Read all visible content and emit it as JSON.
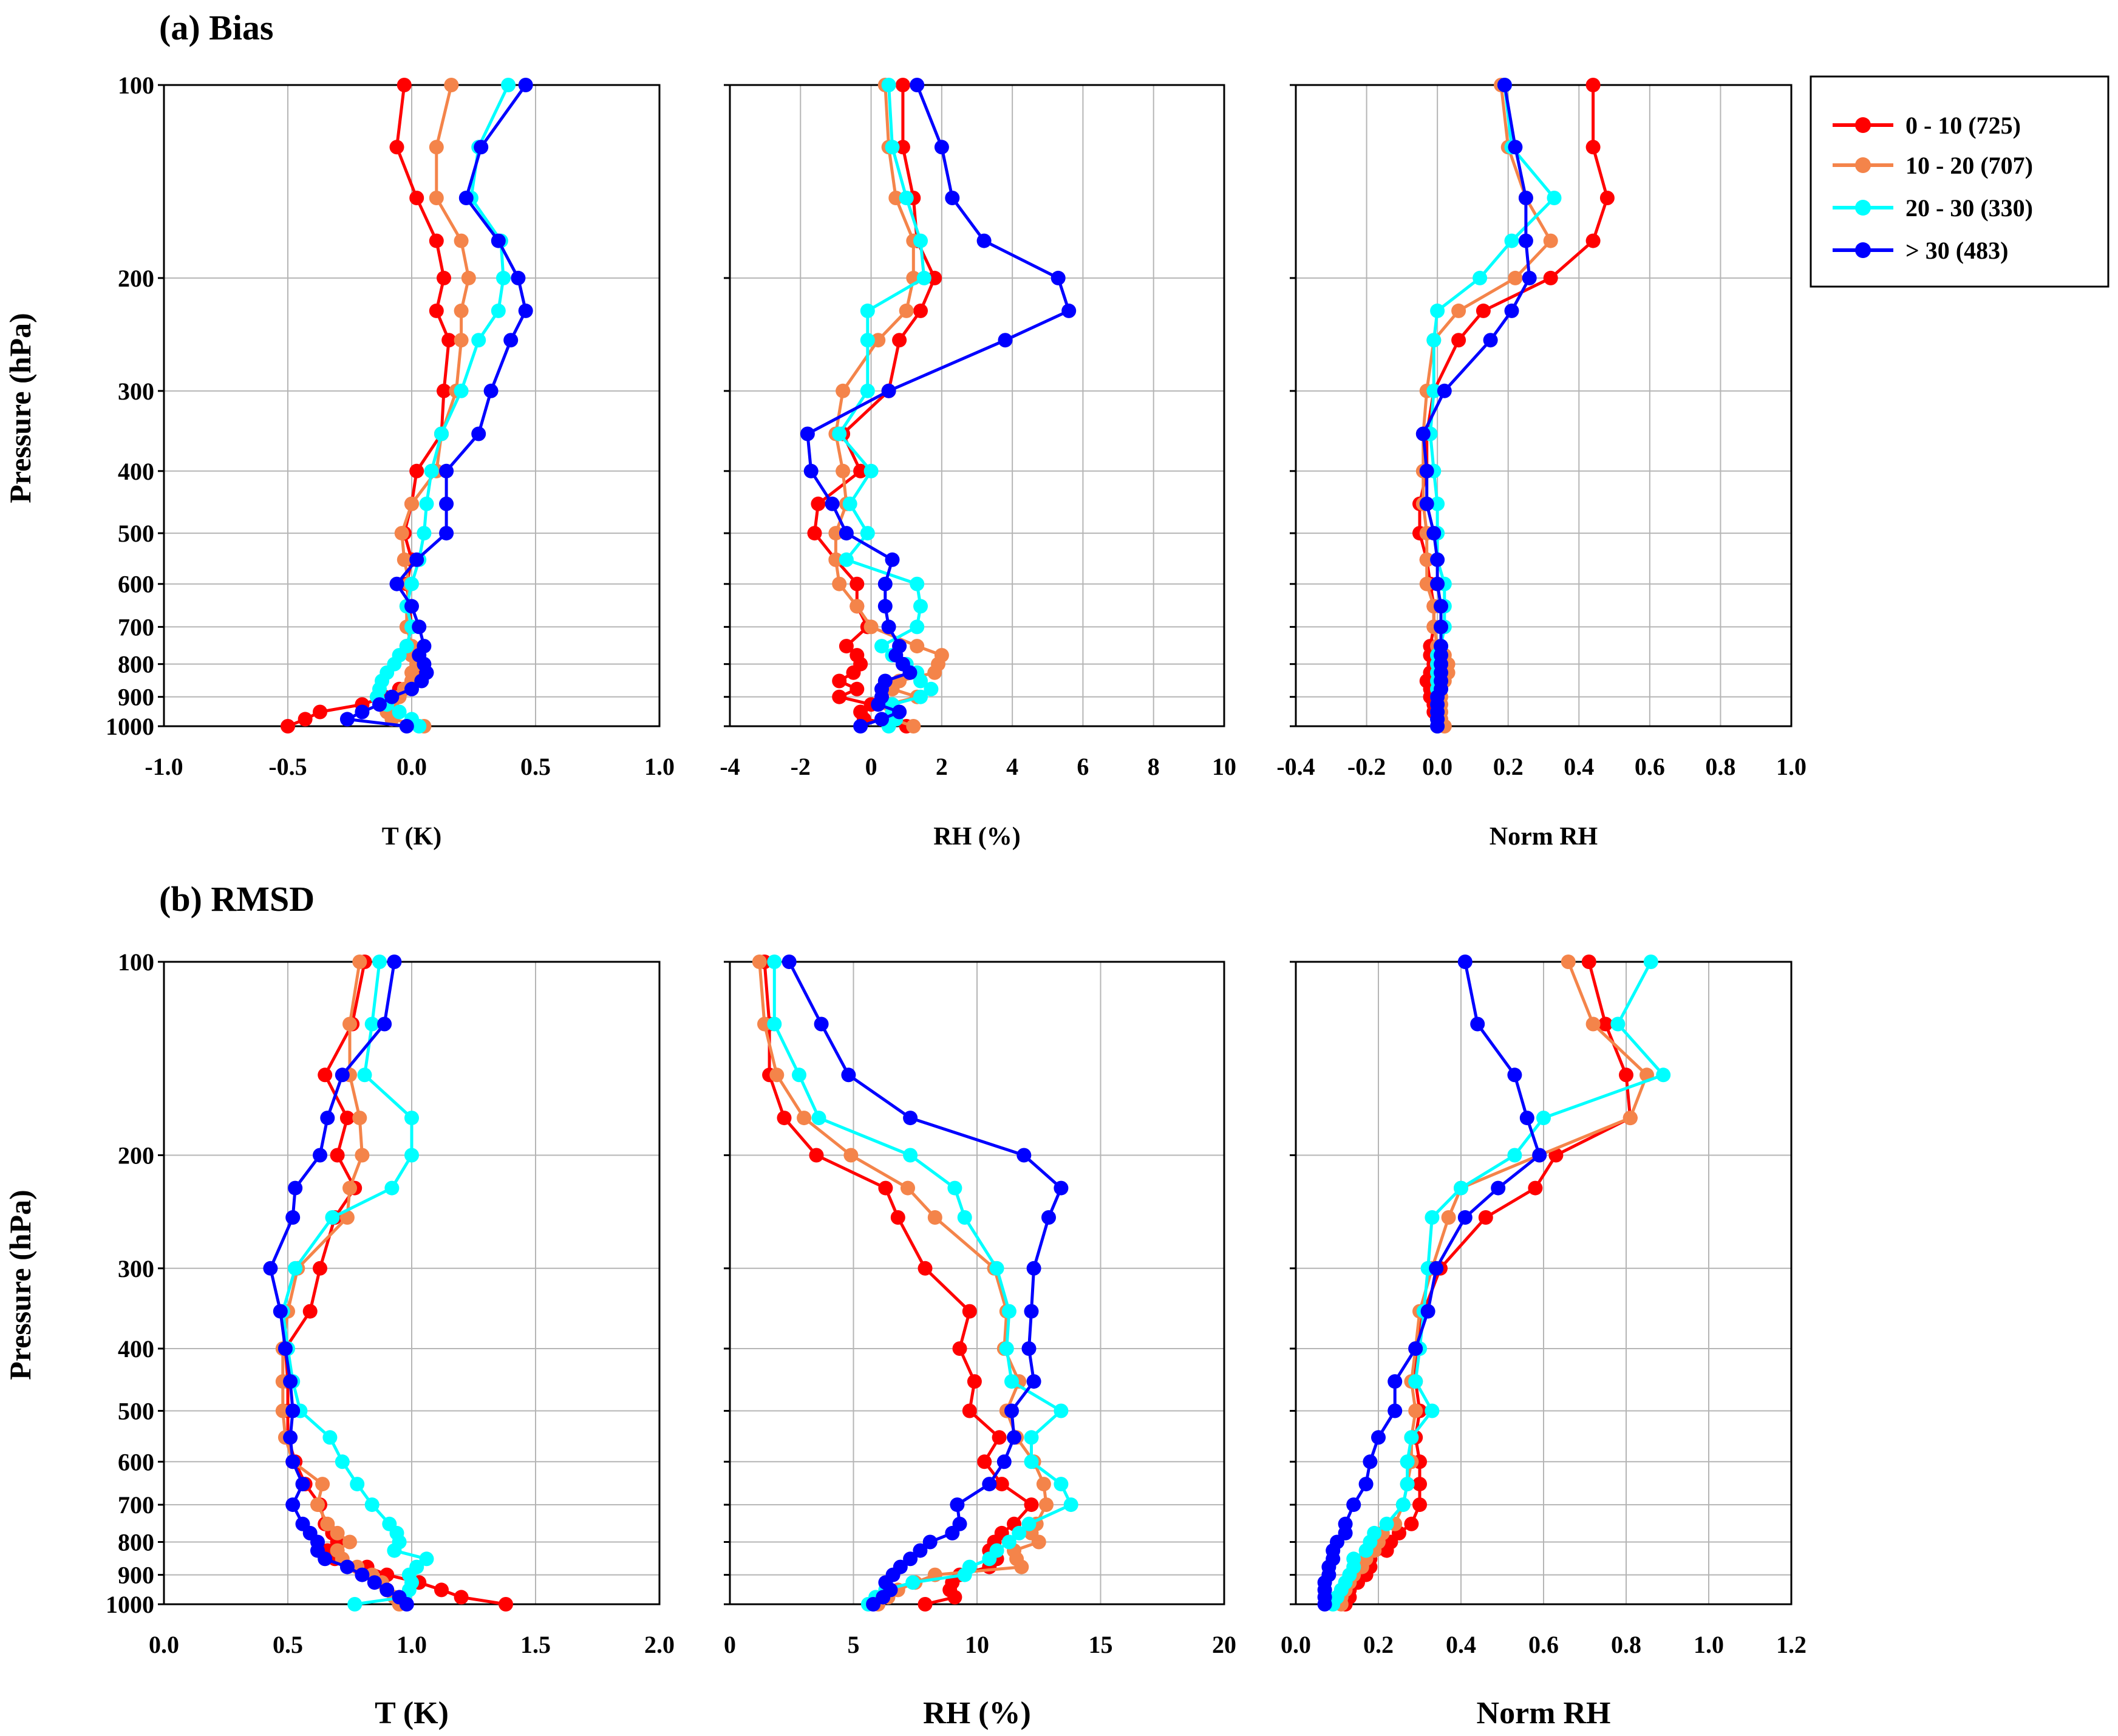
{
  "panel_titles": [
    "(a) Bias",
    "(b) RMSD"
  ],
  "y_axis_label": "Pressure (hPa)",
  "legend": [
    {
      "label": "0 - 10 (725)",
      "color": "#ff0000"
    },
    {
      "label": "10 - 20 (707)",
      "color": "#f4844a"
    },
    {
      "label": "20 - 30 (330)",
      "color": "#00ffff"
    },
    {
      "label": "> 30 (483)",
      "color": "#0000ff"
    }
  ],
  "chart_data": [
    {
      "type": "line",
      "panel": "(a) Bias",
      "xlabel": "T (K)",
      "ylabel": "Pressure (hPa)",
      "xlim": [
        -1.0,
        1.0
      ],
      "xticks": [
        "-1.0",
        "-0.5",
        "0.0",
        "0.5",
        "1.0"
      ],
      "ylim": [
        100,
        1000
      ],
      "yticks": [
        "100",
        "200",
        "300",
        "400",
        "500",
        "600",
        "700",
        "800",
        "900",
        "1000"
      ],
      "y": [
        100,
        125,
        150,
        175,
        200,
        225,
        250,
        300,
        350,
        400,
        450,
        500,
        550,
        600,
        650,
        700,
        750,
        775,
        800,
        825,
        850,
        875,
        900,
        925,
        950,
        975,
        1000
      ],
      "series": [
        {
          "name": "0 - 10 (725)",
          "values": [
            -0.03,
            -0.06,
            0.02,
            0.1,
            0.13,
            0.1,
            0.15,
            0.13,
            0.12,
            0.02,
            0.0,
            -0.03,
            0.0,
            -0.02,
            -0.01,
            0.0,
            -0.02,
            0.0,
            0.02,
            0.02,
            0.0,
            -0.05,
            -0.11,
            -0.2,
            -0.37,
            -0.43,
            -0.5
          ]
        },
        {
          "name": "10 - 20 (707)",
          "values": [
            0.16,
            0.1,
            0.1,
            0.2,
            0.23,
            0.2,
            0.2,
            0.18,
            0.12,
            0.1,
            0.0,
            -0.04,
            -0.03,
            -0.01,
            -0.02,
            -0.02,
            0.0,
            0.0,
            0.02,
            0.0,
            0.0,
            -0.03,
            -0.05,
            -0.08,
            -0.1,
            -0.08,
            0.05
          ]
        },
        {
          "name": "20 - 30 (330)",
          "values": [
            0.39,
            0.27,
            0.24,
            0.36,
            0.37,
            0.35,
            0.27,
            0.2,
            0.12,
            0.08,
            0.06,
            0.05,
            0.03,
            0.0,
            -0.02,
            0.0,
            -0.02,
            -0.05,
            -0.07,
            -0.1,
            -0.12,
            -0.13,
            -0.14,
            -0.1,
            -0.05,
            0.0,
            0.03
          ]
        },
        {
          "name": "> 30 (483)",
          "values": [
            0.46,
            0.28,
            0.22,
            0.35,
            0.43,
            0.46,
            0.4,
            0.32,
            0.27,
            0.14,
            0.14,
            0.14,
            0.02,
            -0.06,
            0.0,
            0.03,
            0.05,
            0.03,
            0.05,
            0.06,
            0.04,
            0.0,
            -0.08,
            -0.13,
            -0.2,
            -0.26,
            -0.02
          ]
        }
      ]
    },
    {
      "type": "line",
      "panel": "(a) Bias",
      "xlabel": "RH (%)",
      "ylabel": "Pressure (hPa)",
      "xlim": [
        -4,
        10
      ],
      "xticks": [
        "-4",
        "-2",
        "0",
        "2",
        "4",
        "6",
        "8",
        "10"
      ],
      "ylim": [
        100,
        1000
      ],
      "yticks": [
        "100",
        "200",
        "300",
        "400",
        "500",
        "600",
        "700",
        "800",
        "900",
        "1000"
      ],
      "y": [
        100,
        125,
        150,
        175,
        200,
        225,
        250,
        300,
        350,
        400,
        450,
        500,
        550,
        600,
        650,
        700,
        750,
        775,
        800,
        825,
        850,
        875,
        900,
        925,
        950,
        975,
        1000
      ],
      "series": [
        {
          "name": "0 - 10 (725)",
          "values": [
            0.9,
            0.9,
            1.2,
            1.3,
            1.8,
            1.4,
            0.8,
            0.5,
            -0.8,
            -0.3,
            -1.5,
            -1.6,
            -1.0,
            -0.4,
            -0.4,
            -0.1,
            -0.7,
            -0.4,
            -0.3,
            -0.5,
            -0.9,
            -0.4,
            -0.9,
            0.0,
            -0.3,
            -0.2,
            1.0
          ]
        },
        {
          "name": "10 - 20 (707)",
          "values": [
            0.4,
            0.5,
            0.7,
            1.2,
            1.2,
            1.0,
            0.2,
            -0.8,
            -1.0,
            -0.8,
            -0.7,
            -1.0,
            -1.0,
            -0.9,
            -0.4,
            0.0,
            1.3,
            2.0,
            1.9,
            1.8,
            0.8,
            0.6,
            1.3,
            0.5,
            0.7,
            0.6,
            1.2
          ]
        },
        {
          "name": "20 - 30 (330)",
          "values": [
            0.5,
            0.6,
            1.0,
            1.4,
            1.5,
            -0.1,
            -0.1,
            -0.1,
            -0.9,
            0.0,
            -0.6,
            -0.1,
            -0.7,
            1.3,
            1.4,
            1.3,
            0.3,
            0.6,
            1.0,
            1.3,
            1.4,
            1.7,
            1.4,
            0.6,
            0.6,
            0.7,
            0.5
          ]
        },
        {
          "name": "> 30 (483)",
          "values": [
            1.3,
            2.0,
            2.3,
            3.2,
            5.3,
            5.6,
            3.8,
            0.5,
            -1.8,
            -1.7,
            -1.1,
            -0.7,
            0.6,
            0.4,
            0.4,
            0.5,
            0.8,
            0.7,
            0.9,
            1.1,
            0.4,
            0.3,
            0.3,
            0.2,
            0.8,
            0.3,
            -0.3
          ]
        }
      ]
    },
    {
      "type": "line",
      "panel": "(a) Bias",
      "xlabel": "Norm RH",
      "ylabel": "Pressure (hPa)",
      "xlim": [
        -0.4,
        1.0
      ],
      "xticks": [
        "-0.4",
        "-0.2",
        "0.0",
        "0.2",
        "0.4",
        "0.6",
        "0.8",
        "1.0"
      ],
      "ylim": [
        100,
        1000
      ],
      "yticks": [
        "100",
        "200",
        "300",
        "400",
        "500",
        "600",
        "700",
        "800",
        "900",
        "1000"
      ],
      "y": [
        100,
        125,
        150,
        175,
        200,
        225,
        250,
        300,
        350,
        400,
        450,
        500,
        550,
        600,
        650,
        700,
        750,
        775,
        800,
        825,
        850,
        875,
        900,
        925,
        950,
        975,
        1000
      ],
      "series": [
        {
          "name": "0 - 10 (725)",
          "values": [
            0.44,
            0.44,
            0.48,
            0.44,
            0.32,
            0.13,
            0.06,
            -0.01,
            -0.03,
            -0.03,
            -0.05,
            -0.05,
            -0.03,
            -0.02,
            -0.01,
            -0.01,
            -0.02,
            -0.02,
            -0.01,
            -0.02,
            -0.03,
            -0.02,
            -0.02,
            -0.01,
            -0.01,
            0.0,
            0.0
          ]
        },
        {
          "name": "10 - 20 (707)",
          "values": [
            0.18,
            0.2,
            0.25,
            0.32,
            0.22,
            0.06,
            -0.01,
            -0.03,
            -0.04,
            -0.04,
            -0.04,
            -0.03,
            -0.03,
            -0.03,
            -0.01,
            -0.01,
            0.0,
            0.02,
            0.03,
            0.03,
            0.02,
            0.01,
            0.01,
            0.01,
            0.01,
            0.01,
            0.02
          ]
        },
        {
          "name": "20 - 30 (330)",
          "values": [
            0.19,
            0.21,
            0.33,
            0.21,
            0.12,
            0.0,
            -0.01,
            -0.01,
            -0.02,
            -0.01,
            0.0,
            0.0,
            0.0,
            0.02,
            0.02,
            0.02,
            0.01,
            0.0,
            0.0,
            0.0,
            0.0,
            0.0,
            0.0,
            0.0,
            0.0,
            0.0,
            0.0
          ]
        },
        {
          "name": "> 30 (483)",
          "values": [
            0.19,
            0.22,
            0.25,
            0.25,
            0.26,
            0.21,
            0.15,
            0.02,
            -0.04,
            -0.03,
            -0.03,
            -0.01,
            0.0,
            0.0,
            0.01,
            0.01,
            0.01,
            0.01,
            0.01,
            0.01,
            0.01,
            0.01,
            0.0,
            0.0,
            0.0,
            0.0,
            0.0
          ]
        }
      ]
    },
    {
      "type": "line",
      "panel": "(b) RMSD",
      "xlabel": "T (K)",
      "ylabel": "Pressure (hPa)",
      "xlim": [
        0.0,
        2.0
      ],
      "xticks": [
        "0.0",
        "0.5",
        "1.0",
        "1.5",
        "2.0"
      ],
      "ylim": [
        100,
        1000
      ],
      "yticks": [
        "100",
        "200",
        "300",
        "400",
        "500",
        "600",
        "700",
        "800",
        "900",
        "1000"
      ],
      "y": [
        100,
        125,
        150,
        175,
        200,
        225,
        250,
        300,
        350,
        400,
        450,
        500,
        550,
        600,
        650,
        700,
        750,
        775,
        800,
        825,
        850,
        875,
        900,
        925,
        950,
        975,
        1000
      ],
      "series": [
        {
          "name": "0 - 10 (725)",
          "values": [
            0.81,
            0.76,
            0.65,
            0.74,
            0.7,
            0.77,
            0.69,
            0.63,
            0.59,
            0.49,
            0.5,
            0.5,
            0.5,
            0.53,
            0.57,
            0.63,
            0.65,
            0.68,
            0.7,
            0.66,
            0.69,
            0.82,
            0.9,
            1.03,
            1.12,
            1.2,
            1.38
          ]
        },
        {
          "name": "10 - 20 (707)",
          "values": [
            0.79,
            0.75,
            0.75,
            0.79,
            0.8,
            0.75,
            0.74,
            0.54,
            0.5,
            0.48,
            0.48,
            0.48,
            0.49,
            0.52,
            0.64,
            0.62,
            0.66,
            0.7,
            0.75,
            0.7,
            0.72,
            0.78,
            0.84,
            0.88,
            0.9,
            0.93,
            0.95
          ]
        },
        {
          "name": "20 - 30 (330)",
          "values": [
            0.87,
            0.84,
            0.81,
            1.0,
            1.0,
            0.92,
            0.68,
            0.53,
            0.48,
            0.5,
            0.52,
            0.55,
            0.67,
            0.72,
            0.78,
            0.84,
            0.91,
            0.94,
            0.95,
            0.93,
            1.06,
            1.02,
            0.99,
            1.0,
            0.99,
            0.97,
            0.77
          ]
        },
        {
          "name": "> 30 (483)",
          "values": [
            0.93,
            0.89,
            0.72,
            0.66,
            0.63,
            0.53,
            0.52,
            0.43,
            0.47,
            0.49,
            0.51,
            0.52,
            0.51,
            0.52,
            0.56,
            0.52,
            0.56,
            0.59,
            0.62,
            0.62,
            0.65,
            0.74,
            0.8,
            0.85,
            0.9,
            0.95,
            0.98
          ]
        }
      ]
    },
    {
      "type": "line",
      "panel": "(b) RMSD",
      "xlabel": "RH (%)",
      "ylabel": "Pressure (hPa)",
      "xlim": [
        0,
        20
      ],
      "xticks": [
        "0",
        "5",
        "10",
        "15",
        "20"
      ],
      "ylim": [
        100,
        1000
      ],
      "yticks": [
        "100",
        "200",
        "300",
        "400",
        "500",
        "600",
        "700",
        "800",
        "900",
        "1000"
      ],
      "y": [
        100,
        125,
        150,
        175,
        200,
        225,
        250,
        300,
        350,
        400,
        450,
        500,
        550,
        600,
        650,
        700,
        750,
        775,
        800,
        825,
        850,
        875,
        900,
        925,
        950,
        975,
        1000
      ],
      "series": [
        {
          "name": "0 - 10 (725)",
          "values": [
            1.4,
            1.6,
            1.6,
            2.2,
            3.5,
            6.3,
            6.8,
            7.9,
            9.7,
            9.3,
            9.9,
            9.7,
            10.9,
            10.3,
            11.0,
            12.2,
            11.5,
            11.0,
            10.7,
            10.5,
            10.8,
            10.5,
            9.3,
            9.0,
            8.9,
            9.1,
            7.9
          ]
        },
        {
          "name": "10 - 20 (707)",
          "values": [
            1.2,
            1.4,
            1.9,
            3.0,
            4.9,
            7.2,
            8.3,
            10.7,
            11.2,
            11.1,
            11.7,
            11.2,
            11.6,
            12.3,
            12.7,
            12.8,
            12.4,
            12.2,
            12.5,
            11.5,
            11.6,
            11.8,
            8.3,
            7.5,
            6.8,
            6.4,
            6.0
          ]
        },
        {
          "name": "20 - 30 (330)",
          "values": [
            1.8,
            1.8,
            2.8,
            3.6,
            7.3,
            9.1,
            9.5,
            10.8,
            11.3,
            11.2,
            11.4,
            13.4,
            12.2,
            12.2,
            13.4,
            13.8,
            12.1,
            11.7,
            11.3,
            10.8,
            10.5,
            9.7,
            9.5,
            7.4,
            6.3,
            5.9,
            5.6
          ]
        },
        {
          "name": "> 30 (483)",
          "values": [
            2.4,
            3.7,
            4.8,
            7.3,
            11.9,
            13.4,
            12.9,
            12.3,
            12.2,
            12.1,
            12.3,
            11.4,
            11.5,
            11.1,
            10.5,
            9.2,
            9.3,
            9.0,
            8.1,
            7.7,
            7.3,
            6.9,
            6.6,
            6.3,
            6.5,
            6.2,
            5.8
          ]
        }
      ]
    },
    {
      "type": "line",
      "panel": "(b) RMSD",
      "xlabel": "Norm RH",
      "ylabel": "Pressure (hPa)",
      "xlim": [
        0.0,
        1.2
      ],
      "xticks": [
        "0.0",
        "0.2",
        "0.4",
        "0.6",
        "0.8",
        "1.0",
        "1.2"
      ],
      "ylim": [
        100,
        1000
      ],
      "yticks": [
        "100",
        "200",
        "300",
        "400",
        "500",
        "600",
        "700",
        "800",
        "900",
        "1000"
      ],
      "y": [
        100,
        125,
        150,
        175,
        200,
        225,
        250,
        300,
        350,
        400,
        450,
        500,
        550,
        600,
        650,
        700,
        750,
        775,
        800,
        825,
        850,
        875,
        900,
        925,
        950,
        975,
        1000
      ],
      "series": [
        {
          "name": "0 - 10 (725)",
          "values": [
            0.71,
            0.75,
            0.8,
            0.81,
            0.63,
            0.58,
            0.46,
            0.35,
            0.31,
            0.29,
            0.29,
            0.3,
            0.29,
            0.3,
            0.3,
            0.3,
            0.28,
            0.25,
            0.23,
            0.22,
            0.18,
            0.18,
            0.17,
            0.15,
            0.13,
            0.13,
            0.12
          ]
        },
        {
          "name": "10 - 20 (707)",
          "values": [
            0.66,
            0.72,
            0.85,
            0.81,
            0.59,
            0.4,
            0.37,
            0.33,
            0.3,
            0.29,
            0.28,
            0.29,
            0.28,
            0.28,
            0.27,
            0.26,
            0.24,
            0.21,
            0.2,
            0.19,
            0.17,
            0.16,
            0.14,
            0.13,
            0.12,
            0.11,
            0.11
          ]
        },
        {
          "name": "20 - 30 (330)",
          "values": [
            0.86,
            0.78,
            0.89,
            0.6,
            0.53,
            0.4,
            0.33,
            0.32,
            0.31,
            0.3,
            0.29,
            0.33,
            0.28,
            0.27,
            0.27,
            0.26,
            0.22,
            0.19,
            0.18,
            0.17,
            0.14,
            0.14,
            0.13,
            0.12,
            0.11,
            0.1,
            0.09
          ]
        },
        {
          "name": "> 30 (483)",
          "values": [
            0.41,
            0.44,
            0.53,
            0.56,
            0.59,
            0.49,
            0.41,
            0.34,
            0.32,
            0.29,
            0.24,
            0.24,
            0.2,
            0.18,
            0.17,
            0.14,
            0.12,
            0.12,
            0.1,
            0.09,
            0.09,
            0.08,
            0.08,
            0.07,
            0.07,
            0.07,
            0.07
          ]
        }
      ]
    }
  ]
}
